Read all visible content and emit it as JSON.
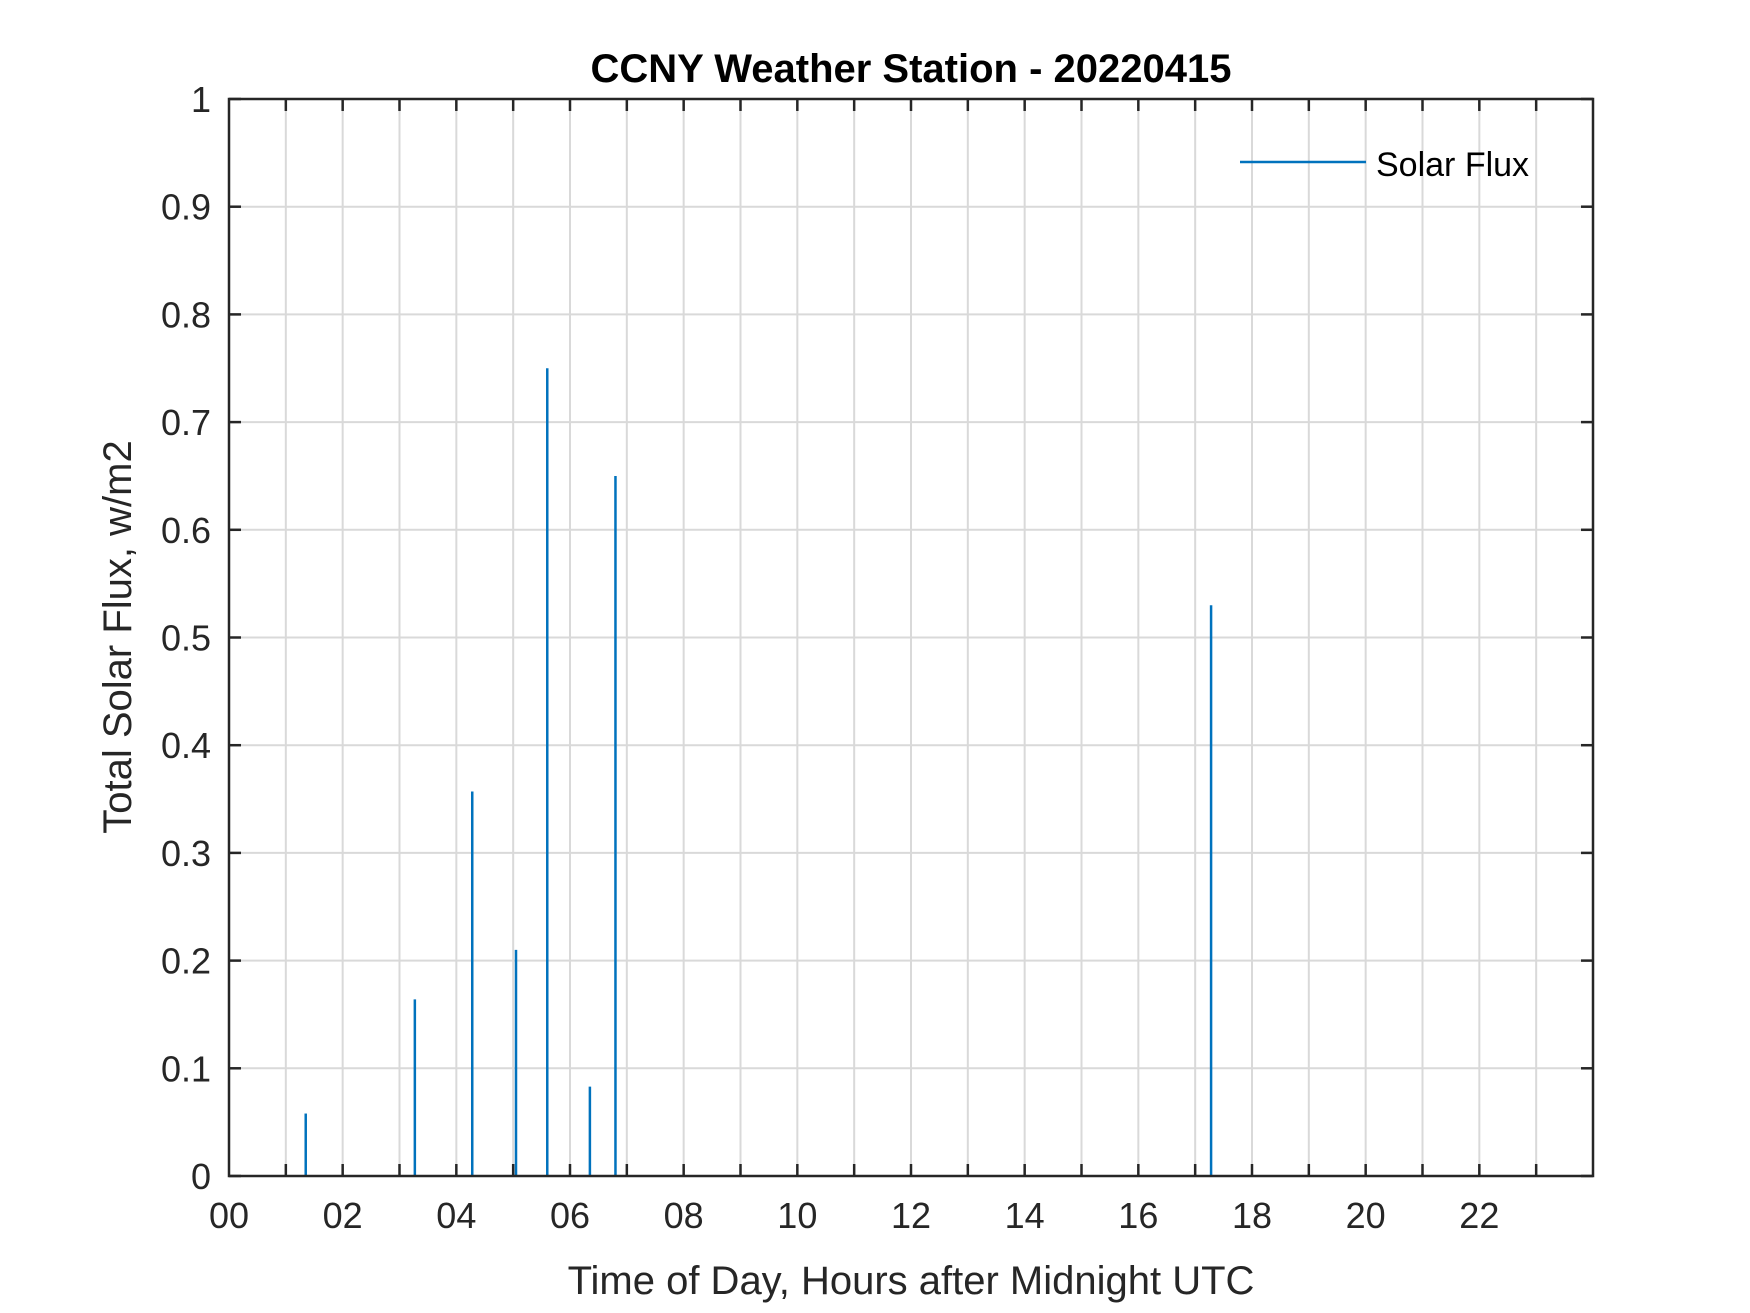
{
  "chart_data": {
    "type": "bar",
    "title": "CCNY Weather Station - 20220415",
    "xlabel": "Time of Day, Hours after Midnight UTC",
    "ylabel": "Total Solar Flux, w/m2",
    "xlim": [
      0,
      24
    ],
    "ylim": [
      0,
      1
    ],
    "x_ticks": [
      0,
      2,
      4,
      6,
      8,
      10,
      12,
      14,
      16,
      18,
      20,
      22
    ],
    "x_tick_labels": [
      "00",
      "02",
      "04",
      "06",
      "08",
      "10",
      "12",
      "14",
      "16",
      "18",
      "20",
      "22"
    ],
    "y_ticks": [
      0,
      0.1,
      0.2,
      0.3,
      0.4,
      0.5,
      0.6,
      0.7,
      0.8,
      0.9,
      1
    ],
    "y_tick_labels": [
      "0",
      "0.1",
      "0.2",
      "0.3",
      "0.4",
      "0.5",
      "0.6",
      "0.7",
      "0.8",
      "0.9",
      "1"
    ],
    "grid": true,
    "legend": {
      "position": "top-right",
      "entries": [
        "Solar Flux"
      ]
    },
    "series": [
      {
        "name": "Solar Flux",
        "color": "#0072BD",
        "x": [
          1.35,
          3.27,
          4.28,
          5.05,
          5.6,
          6.35,
          6.8,
          17.28
        ],
        "y": [
          0.058,
          0.164,
          0.357,
          0.21,
          0.75,
          0.083,
          0.65,
          0.53
        ]
      }
    ]
  }
}
